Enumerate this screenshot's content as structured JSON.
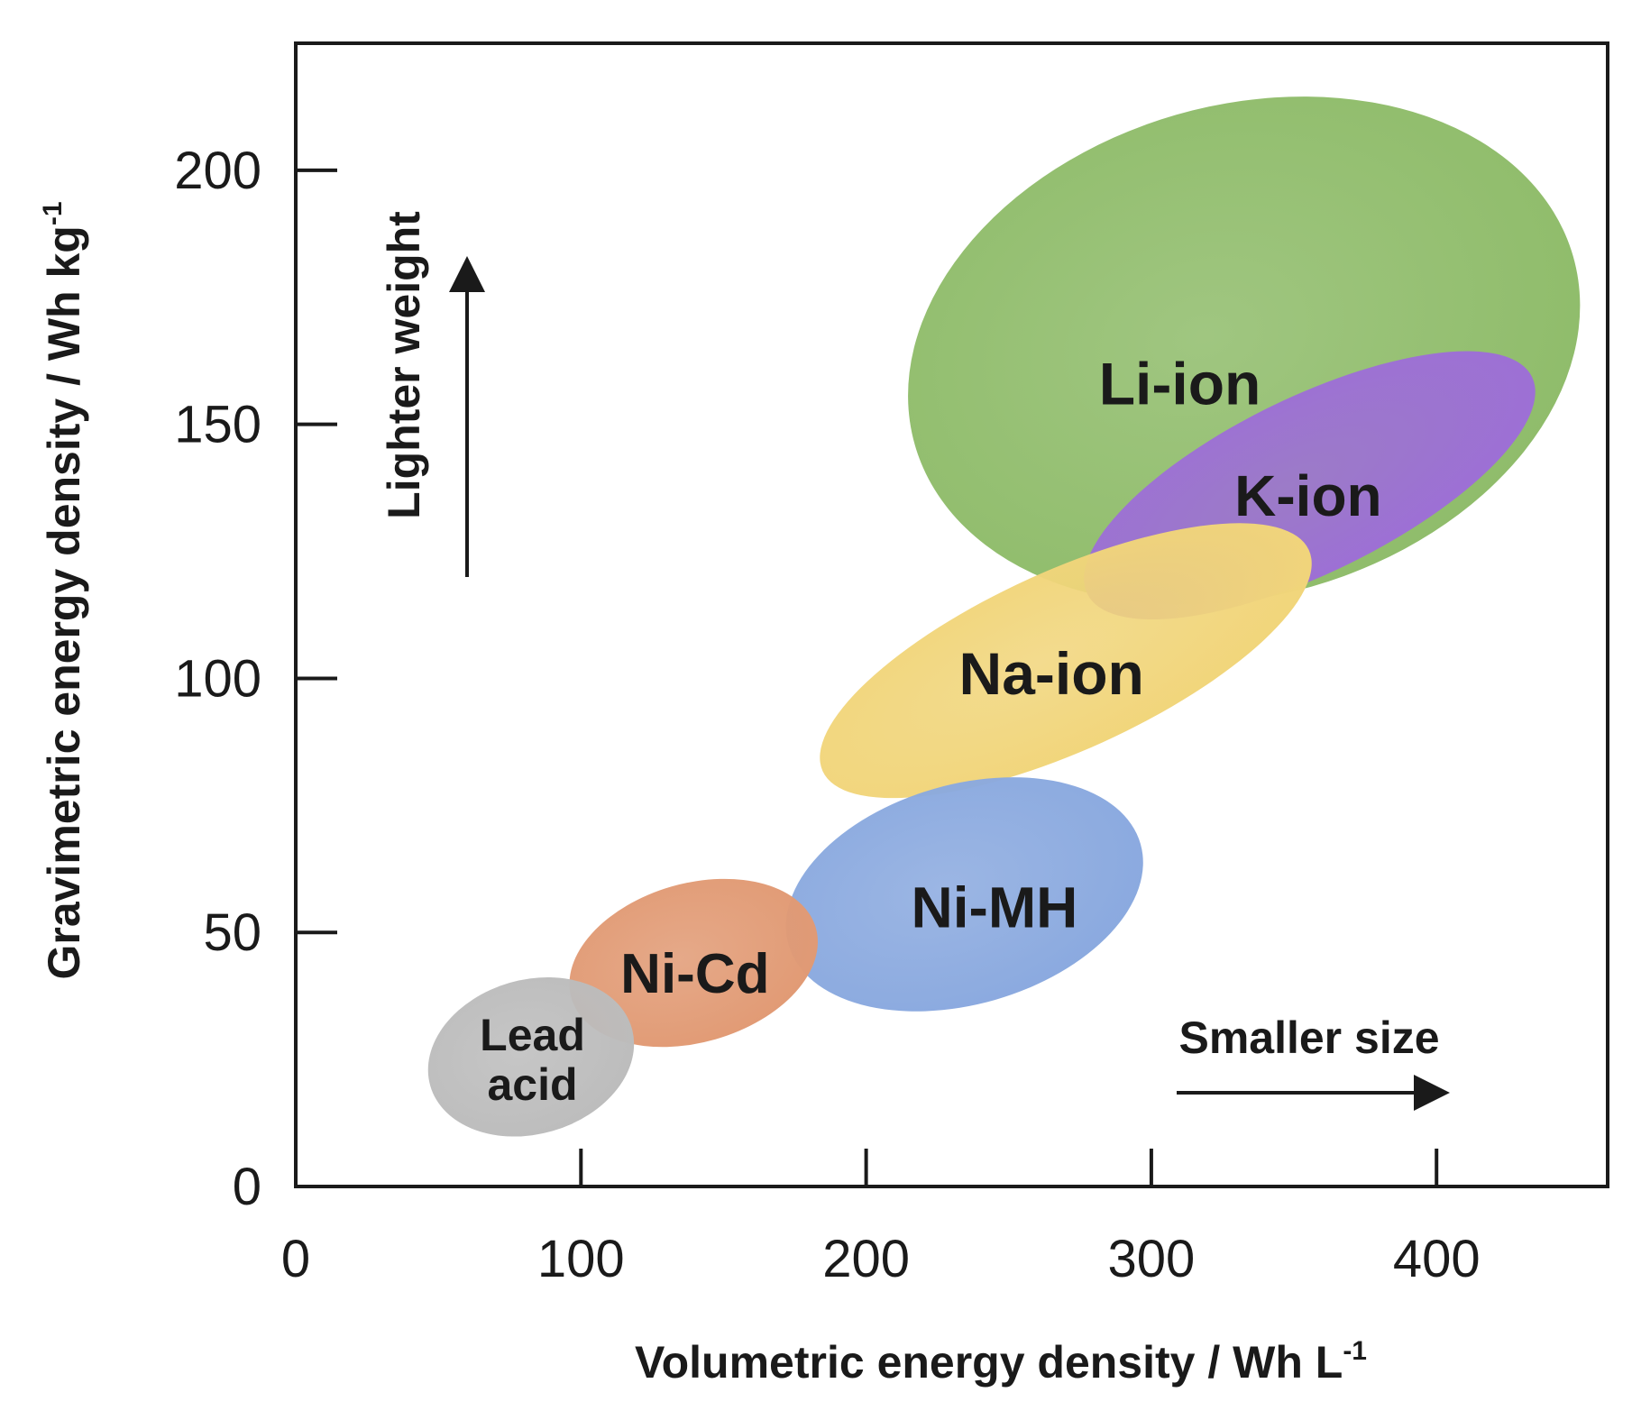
{
  "chart_data": {
    "type": "scatter",
    "title": "",
    "xlabel": "Volumetric energy density / Wh L",
    "xlabel_sup": "-1",
    "ylabel": "Gravimetric energy density / Wh kg",
    "ylabel_sup": "-1",
    "xlim": [
      0,
      460
    ],
    "ylim": [
      0,
      225
    ],
    "xticks": [
      0,
      100,
      200,
      300,
      400
    ],
    "yticks": [
      0,
      50,
      100,
      150,
      200
    ],
    "grid": false,
    "regions": [
      {
        "name": "Li-ion",
        "label_lines": [
          "Li-ion"
        ],
        "center": [
          310,
          158
        ],
        "x_range": [
          210,
          455
        ],
        "y_range": [
          112,
          217
        ],
        "color": "#8fbc6a"
      },
      {
        "name": "K-ion",
        "label_lines": [
          "K-ion"
        ],
        "center": [
          355,
          136
        ],
        "x_range": [
          278,
          433
        ],
        "y_range": [
          114,
          162
        ],
        "color": "#9d6fd6"
      },
      {
        "name": "Na-ion",
        "label_lines": [
          "Na-ion"
        ],
        "center": [
          265,
          101
        ],
        "x_range": [
          185,
          355
        ],
        "y_range": [
          79,
          128
        ],
        "color": "#f1d57a"
      },
      {
        "name": "Ni-MH",
        "label_lines": [
          "Ni-MH"
        ],
        "center": [
          245,
          55
        ],
        "x_range": [
          169,
          300
        ],
        "y_range": [
          34,
          81
        ],
        "color": "#8aa9df"
      },
      {
        "name": "Ni-Cd",
        "label_lines": [
          "Ni-Cd"
        ],
        "center": [
          140,
          42
        ],
        "x_range": [
          94,
          185
        ],
        "y_range": [
          27,
          61
        ],
        "color": "#e19a74"
      },
      {
        "name": "Lead acid",
        "label_lines": [
          "Lead",
          "acid"
        ],
        "center": [
          83,
          25
        ],
        "x_range": [
          45,
          120
        ],
        "y_range": [
          9,
          42
        ],
        "color": "#bcbcbc"
      }
    ],
    "annotations": [
      {
        "text": "Lighter weight",
        "direction": "up"
      },
      {
        "text": "Smaller size",
        "direction": "right"
      }
    ]
  }
}
